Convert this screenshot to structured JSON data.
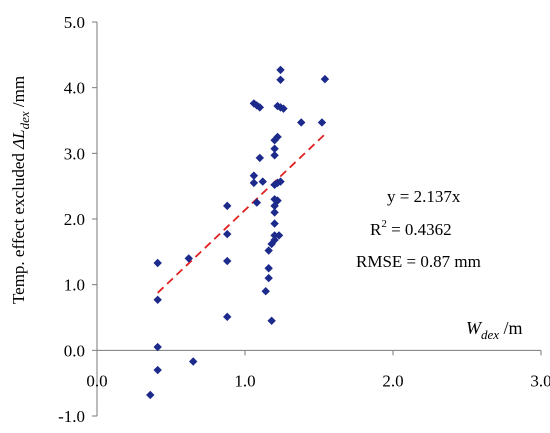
{
  "chart_data": {
    "type": "scatter",
    "xlim": [
      0.0,
      3.0
    ],
    "ylim": [
      -1.0,
      5.0
    ],
    "x_ticks": [
      "0.0",
      "1.0",
      "2.0",
      "3.0"
    ],
    "y_ticks": [
      "-1.0",
      "0.0",
      "1.0",
      "2.0",
      "3.0",
      "4.0",
      "5.0"
    ],
    "ylabel": {
      "prefix": "Temp. effect excluded",
      "symbol": "ΔL",
      "subscript": "dex",
      "unit": " /mm"
    },
    "xlabel": {
      "symbol": "W",
      "subscript": "dex",
      "unit": " /m"
    },
    "annotations": {
      "equation": "y = 2.137x",
      "r2_prefix": "R",
      "r2_sup": "2",
      "r2_value": " = 0.4362",
      "rmse": "RMSE = 0.87 mm"
    },
    "fit_line": {
      "slope": 2.137,
      "x_range": [
        0.41,
        1.55
      ],
      "color": "#e02020",
      "style": "dashed"
    },
    "point_color": "#1c2a8c",
    "grid": false,
    "series": [
      {
        "points": [
          [
            0.36,
            -0.68
          ],
          [
            0.41,
            -0.3
          ],
          [
            0.41,
            0.05
          ],
          [
            0.41,
            0.77
          ],
          [
            0.41,
            1.33
          ],
          [
            0.65,
            -0.17
          ],
          [
            0.62,
            1.4
          ],
          [
            0.88,
            0.51
          ],
          [
            0.88,
            1.36
          ],
          [
            0.88,
            1.77
          ],
          [
            0.88,
            2.2
          ],
          [
            1.06,
            3.76
          ],
          [
            1.08,
            3.73
          ],
          [
            1.1,
            3.7
          ],
          [
            1.06,
            2.66
          ],
          [
            1.06,
            2.55
          ],
          [
            1.08,
            2.25
          ],
          [
            1.1,
            2.93
          ],
          [
            1.12,
            2.57
          ],
          [
            1.14,
            0.9
          ],
          [
            1.16,
            1.1
          ],
          [
            1.16,
            1.25
          ],
          [
            1.16,
            1.52
          ],
          [
            1.18,
            1.62
          ],
          [
            1.18,
            0.45
          ],
          [
            1.2,
            1.68
          ],
          [
            1.2,
            1.75
          ],
          [
            1.23,
            1.75
          ],
          [
            1.2,
            1.93
          ],
          [
            1.2,
            2.1
          ],
          [
            1.2,
            2.2
          ],
          [
            1.2,
            2.3
          ],
          [
            1.22,
            2.28
          ],
          [
            1.2,
            2.52
          ],
          [
            1.22,
            2.55
          ],
          [
            1.24,
            2.57
          ],
          [
            1.2,
            2.97
          ],
          [
            1.2,
            3.07
          ],
          [
            1.2,
            3.2
          ],
          [
            1.22,
            3.25
          ],
          [
            1.22,
            3.72
          ],
          [
            1.24,
            3.7
          ],
          [
            1.26,
            3.68
          ],
          [
            1.24,
            4.12
          ],
          [
            1.24,
            4.27
          ],
          [
            1.38,
            3.47
          ],
          [
            1.52,
            3.47
          ],
          [
            1.54,
            4.13
          ]
        ]
      }
    ]
  }
}
